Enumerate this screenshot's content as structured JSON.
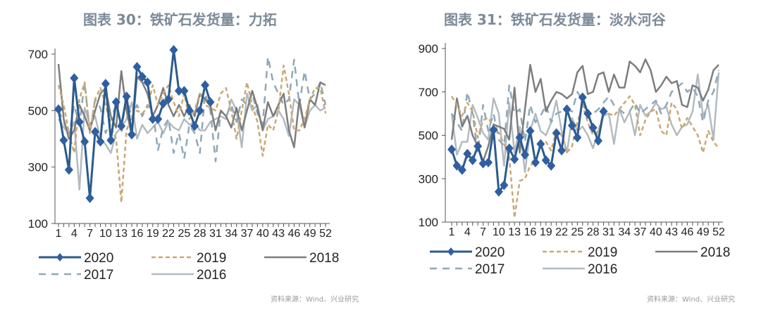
{
  "chart_data": [
    {
      "type": "line",
      "title": "图表 30：铁矿石发货量：力拓",
      "source": "资料来源：Wind、兴业研究",
      "ylim": [
        100,
        700
      ],
      "yticks": [
        100,
        300,
        500,
        700
      ],
      "xlim": [
        1,
        52
      ],
      "xticks": [
        1,
        4,
        7,
        10,
        13,
        16,
        19,
        22,
        25,
        28,
        31,
        34,
        37,
        40,
        43,
        46,
        49,
        52
      ],
      "legend": "bottom",
      "series": [
        {
          "name": "2020",
          "values": [
            505,
            395,
            290,
            615,
            460,
            390,
            190,
            425,
            390,
            595,
            395,
            530,
            445,
            550,
            415,
            655,
            620,
            600,
            470,
            470,
            525,
            540,
            715,
            570,
            570,
            500,
            445,
            500,
            590,
            530
          ]
        },
        {
          "name": "2019",
          "values": [
            590,
            520,
            420,
            350,
            540,
            600,
            420,
            540,
            580,
            520,
            440,
            400,
            175,
            430,
            480,
            500,
            490,
            510,
            590,
            520,
            560,
            590,
            530,
            480,
            560,
            470,
            500,
            560,
            520,
            510,
            500,
            560,
            580,
            500,
            400,
            500,
            600,
            520,
            460,
            340,
            450,
            430,
            500,
            660,
            560,
            430,
            430,
            470,
            540,
            580,
            580,
            490
          ]
        },
        {
          "name": "2018",
          "values": [
            665,
            470,
            400,
            430,
            520,
            480,
            430,
            500,
            560,
            580,
            480,
            440,
            640,
            500,
            410,
            620,
            600,
            560,
            480,
            520,
            580,
            520,
            480,
            520,
            480,
            520,
            480,
            560,
            540,
            520,
            430,
            500,
            480,
            440,
            510,
            430,
            500,
            570,
            510,
            430,
            530,
            480,
            520,
            560,
            430,
            370,
            540,
            440,
            540,
            520,
            600,
            590
          ]
        },
        {
          "name": "2017",
          "values": [
            500,
            460,
            410,
            520,
            450,
            600,
            420,
            540,
            510,
            420,
            470,
            520,
            420,
            560,
            470,
            520,
            480,
            520,
            500,
            360,
            440,
            470,
            350,
            420,
            330,
            450,
            420,
            350,
            560,
            500,
            320,
            500,
            480,
            520,
            460,
            540,
            520,
            560,
            490,
            450,
            690,
            600,
            560,
            520,
            540,
            680,
            520,
            640,
            540,
            560,
            600,
            520
          ]
        },
        {
          "name": "2016",
          "values": [
            470,
            440,
            420,
            460,
            220,
            510,
            450,
            480,
            400,
            380,
            350,
            420,
            440,
            470,
            530,
            400,
            450,
            420,
            440,
            460,
            420,
            460,
            440,
            430,
            470,
            450,
            460,
            430,
            430,
            460,
            470,
            480,
            470,
            540,
            500,
            370,
            560,
            500,
            520,
            430,
            470,
            480,
            500,
            470,
            410,
            540,
            520,
            440,
            500,
            520,
            500,
            510
          ]
        }
      ]
    },
    {
      "type": "line",
      "title": "图表 31：铁矿石发货量：淡水河谷",
      "source": "资料来源：Wind、兴业研究",
      "ylim": [
        100,
        900
      ],
      "yticks": [
        100,
        300,
        500,
        700,
        900
      ],
      "xlim": [
        1,
        52
      ],
      "xticks": [
        1,
        4,
        7,
        10,
        13,
        16,
        19,
        22,
        25,
        28,
        31,
        34,
        37,
        40,
        43,
        46,
        49,
        52
      ],
      "legend": "bottom",
      "series": [
        {
          "name": "2020",
          "values": [
            435,
            360,
            340,
            415,
            385,
            450,
            370,
            375,
            525,
            240,
            270,
            440,
            390,
            490,
            410,
            520,
            375,
            460,
            385,
            360,
            510,
            430,
            620,
            545,
            490,
            675,
            600,
            535,
            475,
            610
          ]
        },
        {
          "name": "2019",
          "values": [
            680,
            640,
            590,
            650,
            610,
            490,
            570,
            580,
            540,
            510,
            460,
            400,
            120,
            290,
            300,
            360,
            380,
            450,
            470,
            430,
            520,
            500,
            420,
            450,
            560,
            640,
            560,
            500,
            520,
            600,
            600,
            590,
            620,
            650,
            680,
            640,
            500,
            570,
            610,
            620,
            520,
            500,
            650,
            620,
            530,
            580,
            540,
            500,
            420,
            520,
            470,
            440
          ]
        },
        {
          "name": "2018",
          "values": [
            480,
            670,
            540,
            590,
            500,
            450,
            380,
            450,
            550,
            540,
            530,
            480,
            720,
            420,
            620,
            825,
            700,
            760,
            610,
            660,
            700,
            690,
            670,
            690,
            790,
            820,
            690,
            700,
            780,
            790,
            700,
            780,
            720,
            720,
            840,
            820,
            790,
            850,
            800,
            700,
            730,
            770,
            740,
            750,
            640,
            630,
            730,
            720,
            660,
            710,
            800,
            825
          ]
        },
        {
          "name": "2017",
          "values": [
            600,
            560,
            520,
            700,
            600,
            420,
            640,
            520,
            600,
            480,
            450,
            730,
            600,
            620,
            470,
            640,
            560,
            590,
            640,
            560,
            600,
            610,
            620,
            610,
            700,
            660,
            580,
            600,
            620,
            650,
            680,
            640,
            620,
            600,
            610,
            650,
            600,
            620,
            640,
            660,
            600,
            640,
            700,
            720,
            740,
            700,
            720,
            680,
            560,
            660,
            700,
            800
          ]
        },
        {
          "name": "2016",
          "values": [
            600,
            410,
            470,
            470,
            640,
            580,
            510,
            480,
            670,
            600,
            360,
            650,
            420,
            540,
            330,
            520,
            600,
            520,
            500,
            560,
            660,
            520,
            420,
            580,
            520,
            540,
            500,
            440,
            520,
            590,
            600,
            460,
            620,
            560,
            610,
            500,
            640,
            590,
            610,
            650,
            620,
            630,
            550,
            500,
            540,
            550,
            610,
            780,
            590,
            640,
            480,
            790
          ]
        }
      ]
    }
  ],
  "colors": {
    "2020": "#2b5b8e",
    "2019": "#c9a874",
    "2018": "#7d7d7d",
    "2017": "#8fa8b7",
    "2016": "#b3bbc1"
  }
}
